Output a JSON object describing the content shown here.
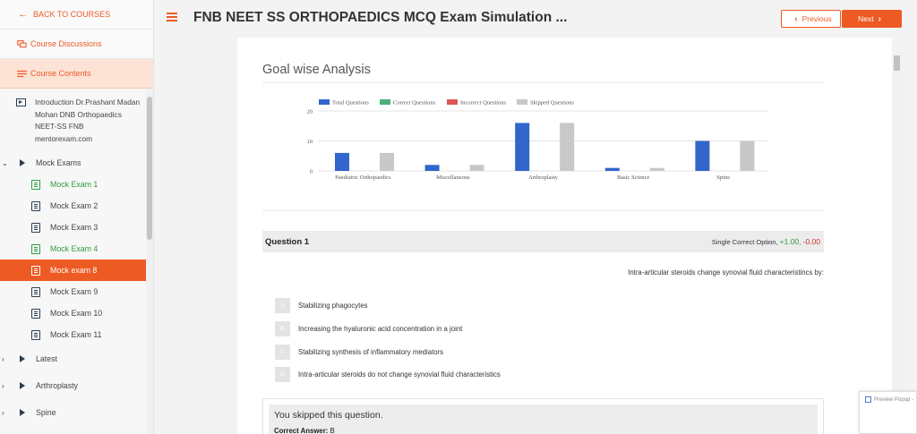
{
  "sidebar": {
    "back_label": "BACK TO COURSES",
    "discussions_label": "Course Discussions",
    "contents_label": "Course Contents",
    "intro_label": "Introduction Dr.Prashant Madan Mohan DNB Orthopaedics NEET-SS FNB mentorexam.com",
    "mock_group_label": "Mock Exams",
    "exams": [
      {
        "label": "Mock Exam 1",
        "state": "done"
      },
      {
        "label": "Mock Exam 2",
        "state": "normal"
      },
      {
        "label": "Mock Exam 3",
        "state": "normal"
      },
      {
        "label": "Mock Exam 4",
        "state": "done"
      },
      {
        "label": "Mock exam 8",
        "state": "active"
      },
      {
        "label": "Mock Exam 9",
        "state": "normal"
      },
      {
        "label": "Mock Exam 10",
        "state": "normal"
      },
      {
        "label": "Mock Exam 11",
        "state": "normal"
      }
    ],
    "groups": [
      "Latest",
      "Arthroplasty",
      "Spine"
    ]
  },
  "header": {
    "title": "FNB NEET SS ORTHOPAEDICS MCQ Exam Simulation ...",
    "prev_label": "Previous",
    "next_label": "Next"
  },
  "analysis": {
    "title": "Goal wise Analysis"
  },
  "chart_data": {
    "type": "bar",
    "categories": [
      "Paediatric Orthopaedics",
      "Miscellaneous",
      "Arthroplasty",
      "Basic Science",
      "Spine"
    ],
    "series": [
      {
        "name": "Total Questions",
        "color": "#3366cc",
        "values": [
          6,
          2,
          16,
          1,
          10
        ]
      },
      {
        "name": "Correct Questions",
        "color": "#4caf7a",
        "values": [
          0,
          0,
          0,
          0,
          0
        ]
      },
      {
        "name": "Incorrect Questions",
        "color": "#e05555",
        "values": [
          0,
          0,
          0,
          0,
          0
        ]
      },
      {
        "name": "Skipped Questions",
        "color": "#c8c8c8",
        "values": [
          6,
          2,
          16,
          1,
          10
        ]
      }
    ],
    "yticks": [
      "0",
      "10",
      "20"
    ],
    "ylim": [
      0,
      20
    ],
    "legend": "top",
    "grid": true
  },
  "question": {
    "label": "Question 1",
    "type_label": "Single Correct Option,",
    "positive": "+1.00,",
    "negative": "-0.00",
    "text": "Intra-articular steroids change synovial fluid characteristincs by:",
    "options": [
      {
        "letter": "A",
        "text": "Stabilizing phagocytes"
      },
      {
        "letter": "B",
        "text": "Increasing the hyaluronic acid concentration in a joint"
      },
      {
        "letter": "C",
        "text": "Stabilizing synthesis of inflammatory mediators"
      },
      {
        "letter": "D",
        "text": "Intra-articular steroids do not change synovial fluid characteristics"
      }
    ]
  },
  "feedback": {
    "message": "You skipped this question.",
    "answer_label": "Correct Answer:",
    "answer_value": "B"
  },
  "popup": {
    "label": "Preview Popup -"
  }
}
